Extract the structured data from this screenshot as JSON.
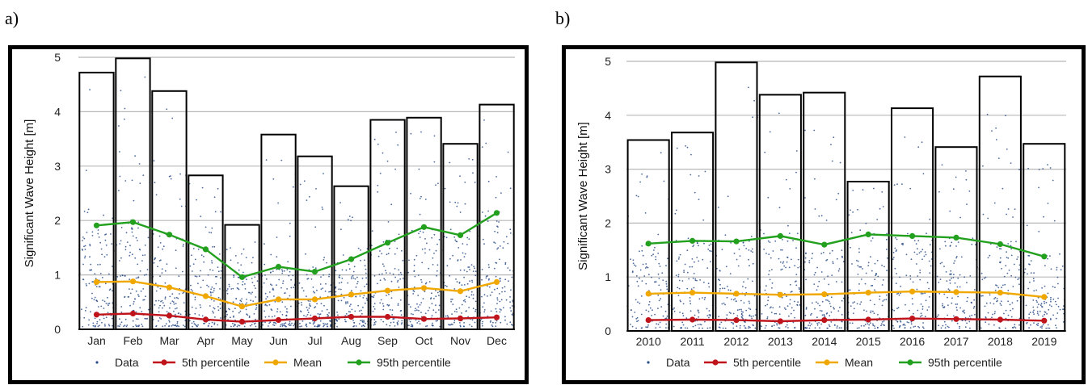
{
  "panels": [
    {
      "letter": "a)",
      "chart_data": {
        "type": "bar",
        "ylabel": "Significant Wave Height [m]",
        "ylim": [
          0,
          5
        ],
        "yticks": [
          0,
          1,
          2,
          3,
          4,
          5
        ],
        "grid": true,
        "legend_placement": "bottom",
        "categories": [
          "Jan",
          "Feb",
          "Mar",
          "Apr",
          "May",
          "Jun",
          "Jul",
          "Aug",
          "Sep",
          "Oct",
          "Nov",
          "Dec"
        ],
        "bars": [
          4.72,
          4.98,
          4.38,
          2.83,
          1.92,
          3.58,
          3.18,
          2.63,
          3.85,
          3.89,
          3.41,
          4.13
        ],
        "series": [
          {
            "name": "5th percentile",
            "color": "#c0141c",
            "values": [
              0.27,
              0.29,
              0.25,
              0.18,
              0.14,
              0.17,
              0.2,
              0.23,
              0.23,
              0.19,
              0.2,
              0.22
            ]
          },
          {
            "name": "Mean",
            "color": "#f0a800",
            "values": [
              0.87,
              0.88,
              0.77,
              0.61,
              0.42,
              0.55,
              0.55,
              0.64,
              0.71,
              0.76,
              0.7,
              0.87
            ]
          },
          {
            "name": "95th percentile",
            "color": "#22a01e",
            "values": [
              1.91,
              1.97,
              1.74,
              1.47,
              0.96,
              1.15,
              1.06,
              1.29,
              1.59,
              1.88,
              1.73,
              2.14
            ]
          }
        ],
        "scatter_name": "Data",
        "scatter_color": "#2d4f8a"
      }
    },
    {
      "letter": "b)",
      "chart_data": {
        "type": "bar",
        "ylabel": "Significant Wave Height [m]",
        "ylim": [
          0,
          5
        ],
        "yticks": [
          0,
          1,
          2,
          3,
          4,
          5
        ],
        "grid": true,
        "legend_placement": "bottom",
        "categories": [
          "2010",
          "2011",
          "2012",
          "2013",
          "2014",
          "2015",
          "2016",
          "2017",
          "2018",
          "2019"
        ],
        "bars": [
          3.54,
          3.68,
          4.98,
          4.38,
          4.42,
          2.77,
          4.13,
          3.41,
          4.72,
          3.47
        ],
        "series": [
          {
            "name": "5th percentile",
            "color": "#c0141c",
            "values": [
              0.2,
              0.21,
              0.2,
              0.18,
              0.2,
              0.21,
              0.23,
              0.22,
              0.21,
              0.19
            ]
          },
          {
            "name": "Mean",
            "color": "#f0a800",
            "values": [
              0.69,
              0.71,
              0.69,
              0.67,
              0.68,
              0.71,
              0.73,
              0.72,
              0.71,
              0.63
            ]
          },
          {
            "name": "95th percentile",
            "color": "#22a01e",
            "values": [
              1.62,
              1.67,
              1.66,
              1.76,
              1.6,
              1.79,
              1.76,
              1.73,
              1.61,
              1.38
            ]
          }
        ],
        "scatter_name": "Data",
        "scatter_color": "#2d4f8a"
      }
    }
  ]
}
